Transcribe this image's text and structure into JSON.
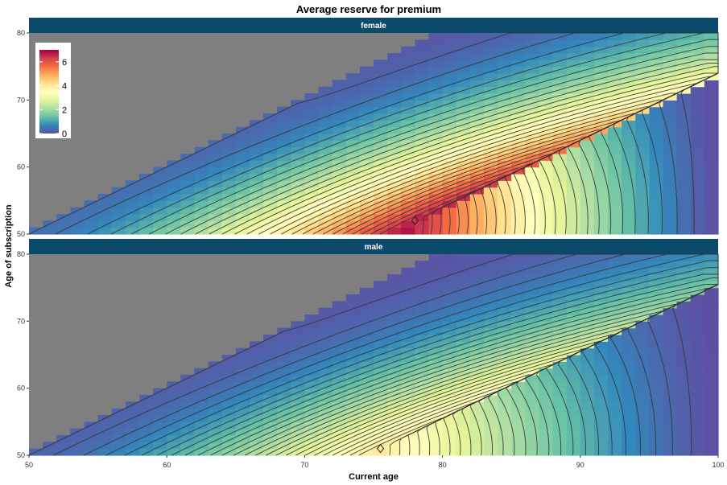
{
  "chart_data": {
    "type": "heatmap",
    "title": "Average reserve for premium",
    "xlabel": "Current age",
    "ylabel": "Age of subscription",
    "xlim": [
      50,
      100
    ],
    "ylim": [
      50,
      80
    ],
    "x_ticks": [
      50,
      60,
      70,
      80,
      90,
      100
    ],
    "y_ticks": [
      50,
      60,
      70,
      80
    ],
    "grid": false,
    "legend": {
      "placement": "top-left",
      "ticks": [
        0,
        2,
        4,
        6
      ],
      "range": [
        0,
        7
      ]
    },
    "colorscale": [
      "#5E4FA2",
      "#3288BD",
      "#66C2A5",
      "#ABDDA4",
      "#E6F598",
      "#FFFFBF",
      "#FEE08B",
      "#FDAE61",
      "#F46D43",
      "#D53E4F",
      "#9E0142"
    ],
    "invalid_region_color": "#7F7F7F",
    "panels": [
      {
        "label": "female",
        "peak_value": 6.6,
        "peak_x": 78,
        "peak_y": 52
      },
      {
        "label": "male",
        "peak_value": 4.0,
        "peak_x": 75.5,
        "peak_y": 51
      }
    ]
  }
}
